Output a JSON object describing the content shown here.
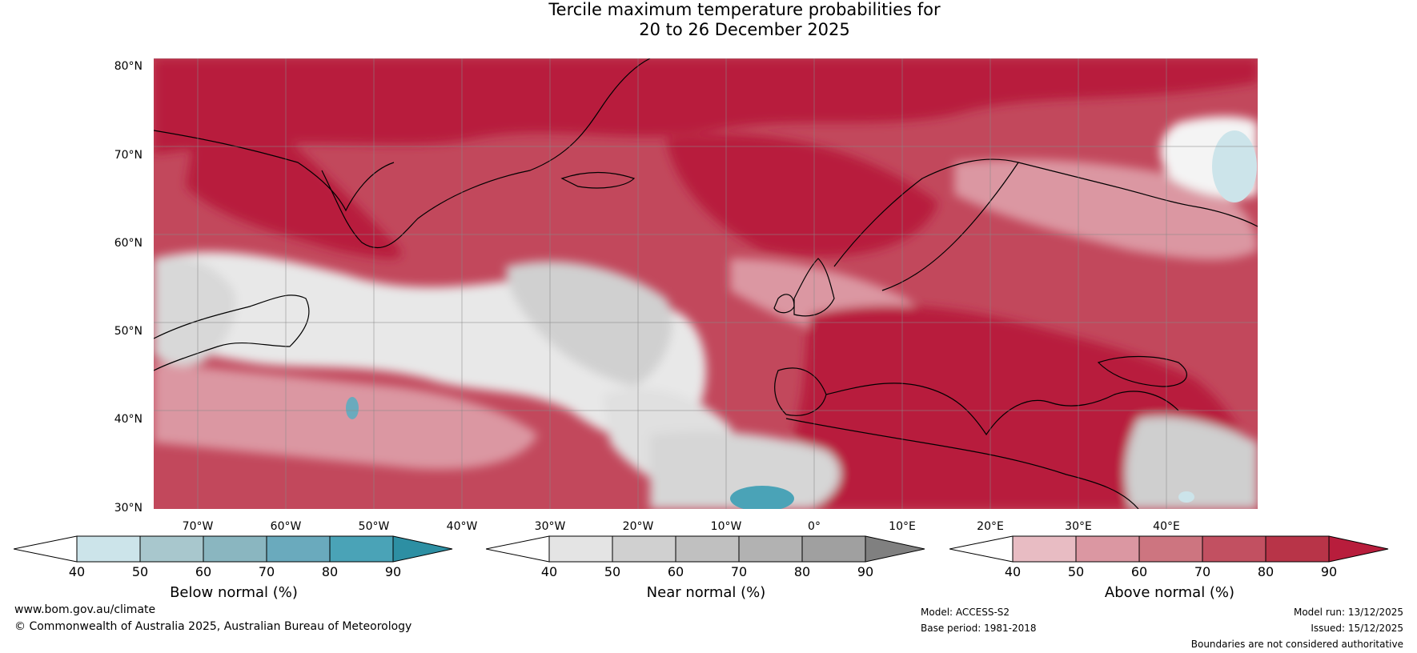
{
  "title": {
    "line1": "Tercile maximum temperature probabilities for",
    "line2": "20 to 26 December 2025"
  },
  "map": {
    "lat_labels": [
      "80°N",
      "70°N",
      "60°N",
      "50°N",
      "40°N",
      "30°N"
    ],
    "lon_labels": [
      "70°W",
      "60°W",
      "50°W",
      "40°W",
      "30°W",
      "20°W",
      "10°W",
      "0°",
      "10°E",
      "20°E",
      "30°E",
      "40°E"
    ]
  },
  "legends": [
    {
      "title": "Below normal (%)",
      "ticks": [
        "40",
        "50",
        "60",
        "70",
        "80",
        "90"
      ],
      "colors": [
        "#ffffff",
        "#cce4ea",
        "#a8c7cd",
        "#8ab6c0",
        "#6aaabd",
        "#4aa3b7",
        "#2d8fa3"
      ]
    },
    {
      "title": "Near normal (%)",
      "ticks": [
        "40",
        "50",
        "60",
        "70",
        "80",
        "90"
      ],
      "colors": [
        "#ffffff",
        "#e4e4e4",
        "#d0d0d0",
        "#c0c0c0",
        "#b2b2b2",
        "#a0a0a0",
        "#808080"
      ]
    },
    {
      "title": "Above normal (%)",
      "ticks": [
        "40",
        "50",
        "60",
        "70",
        "80",
        "90"
      ],
      "colors": [
        "#ffffff",
        "#e8bcc3",
        "#db97a2",
        "#cd7580",
        "#c25061",
        "#b83448",
        "#b81d3c"
      ]
    }
  ],
  "footer": {
    "website": "www.bom.gov.au/climate",
    "copyright": "© Commonwealth of Australia 2025, Australian Bureau of Meteorology",
    "model": "Model: ACCESS-S2",
    "base_period": "Base period: 1981-2018",
    "model_run": "Model run: 13/12/2025",
    "issued": "Issued: 15/12/2025",
    "disclaimer": "Boundaries are not considered authoritative"
  },
  "colors": {
    "above_strong": "#b81d3c",
    "above_mid": "#c25061",
    "above_light": "#db97a2",
    "near_light": "#e4e4e4",
    "near_mid": "#c0c0c0",
    "below_mid": "#4aa3b7"
  }
}
